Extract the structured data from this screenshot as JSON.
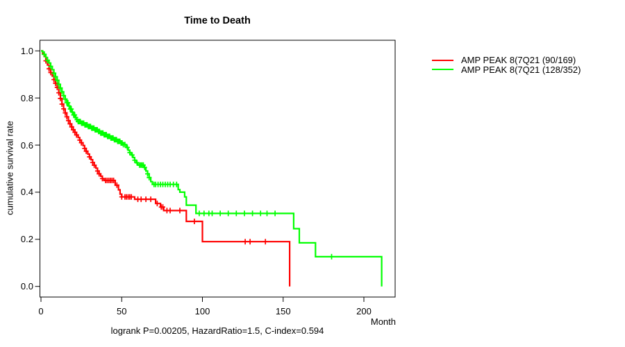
{
  "chart_data": {
    "type": "line",
    "subtype": "kaplan-meier-step",
    "title": "Time to Death",
    "xlabel": "Month",
    "ylabel": "cumulative survival rate",
    "footnote": "logrank P=0.00205, HazardRatio=1.5, C-index=0.594",
    "xlim": [
      0,
      220
    ],
    "ylim": [
      0.0,
      1.0
    ],
    "xticks": [
      0,
      50,
      100,
      150,
      200
    ],
    "yticks": [
      0.0,
      0.2,
      0.4,
      0.6,
      0.8,
      1.0
    ],
    "grid": false,
    "legend_position": "right-outside",
    "axis_color": "#000000",
    "series": [
      {
        "name": "AMP PEAK  8(7Q21 (90/169)",
        "color": "#ff0000",
        "steps": [
          [
            0,
            1.0
          ],
          [
            1,
            0.99
          ],
          [
            2,
            0.976
          ],
          [
            3,
            0.958
          ],
          [
            4,
            0.94
          ],
          [
            5,
            0.924
          ],
          [
            6,
            0.908
          ],
          [
            7,
            0.893
          ],
          [
            8,
            0.878
          ],
          [
            9,
            0.862
          ],
          [
            10,
            0.845
          ],
          [
            11,
            0.822
          ],
          [
            12,
            0.798
          ],
          [
            13,
            0.774
          ],
          [
            14,
            0.754
          ],
          [
            15,
            0.737
          ],
          [
            16,
            0.72
          ],
          [
            17,
            0.704
          ],
          [
            18,
            0.69
          ],
          [
            19,
            0.677
          ],
          [
            20,
            0.665
          ],
          [
            21,
            0.654
          ],
          [
            22,
            0.643
          ],
          [
            23,
            0.632
          ],
          [
            24,
            0.621
          ],
          [
            25,
            0.61
          ],
          [
            26,
            0.598
          ],
          [
            27,
            0.586
          ],
          [
            28,
            0.574
          ],
          [
            29,
            0.562
          ],
          [
            30,
            0.55
          ],
          [
            31,
            0.538
          ],
          [
            32,
            0.526
          ],
          [
            33,
            0.514
          ],
          [
            34,
            0.502
          ],
          [
            35,
            0.49
          ],
          [
            36,
            0.478
          ],
          [
            37,
            0.468
          ],
          [
            38,
            0.458
          ],
          [
            39,
            0.45
          ],
          [
            46,
            0.43
          ],
          [
            48,
            0.41
          ],
          [
            49,
            0.392
          ],
          [
            50,
            0.38
          ],
          [
            58,
            0.37
          ],
          [
            71,
            0.352
          ],
          [
            74,
            0.337
          ],
          [
            76,
            0.322
          ],
          [
            90,
            0.276
          ],
          [
            100,
            0.19
          ],
          [
            154,
            0.0
          ]
        ],
        "censor_months": [
          3,
          5,
          6,
          8,
          9,
          10,
          11,
          12,
          13,
          14,
          15,
          16,
          17,
          18,
          19,
          20,
          21,
          22,
          24,
          25,
          27,
          28,
          30,
          32,
          33,
          35,
          36,
          38,
          40,
          41,
          42,
          43,
          44,
          45,
          47,
          50,
          52,
          53,
          54,
          55,
          56,
          60,
          62,
          65,
          68,
          72,
          74.5,
          75.5,
          78,
          80,
          86,
          95,
          126.5,
          129.5,
          139
        ]
      },
      {
        "name": "AMP PEAK  8(7Q21 (128/352)",
        "color": "#00ff00",
        "steps": [
          [
            0,
            1.0
          ],
          [
            1,
            0.995
          ],
          [
            2,
            0.985
          ],
          [
            3,
            0.972
          ],
          [
            4,
            0.96
          ],
          [
            5,
            0.948
          ],
          [
            6,
            0.934
          ],
          [
            7,
            0.92
          ],
          [
            8,
            0.905
          ],
          [
            9,
            0.89
          ],
          [
            10,
            0.875
          ],
          [
            11,
            0.858
          ],
          [
            12,
            0.842
          ],
          [
            13,
            0.826
          ],
          [
            14,
            0.81
          ],
          [
            15,
            0.795
          ],
          [
            16,
            0.78
          ],
          [
            17,
            0.766
          ],
          [
            18,
            0.753
          ],
          [
            19,
            0.74
          ],
          [
            20,
            0.728
          ],
          [
            21,
            0.717
          ],
          [
            22,
            0.708
          ],
          [
            23,
            0.7
          ],
          [
            25,
            0.693
          ],
          [
            27,
            0.686
          ],
          [
            29,
            0.679
          ],
          [
            31,
            0.672
          ],
          [
            33,
            0.665
          ],
          [
            35,
            0.658
          ],
          [
            37,
            0.651
          ],
          [
            39,
            0.644
          ],
          [
            41,
            0.637
          ],
          [
            43,
            0.63
          ],
          [
            45,
            0.623
          ],
          [
            47,
            0.616
          ],
          [
            49,
            0.609
          ],
          [
            51,
            0.602
          ],
          [
            53,
            0.59
          ],
          [
            54,
            0.578
          ],
          [
            55,
            0.568
          ],
          [
            56,
            0.558
          ],
          [
            57,
            0.547
          ],
          [
            58,
            0.536
          ],
          [
            59,
            0.525
          ],
          [
            60,
            0.515
          ],
          [
            64,
            0.505
          ],
          [
            65,
            0.49
          ],
          [
            66,
            0.478
          ],
          [
            67,
            0.462
          ],
          [
            68,
            0.445
          ],
          [
            69,
            0.433
          ],
          [
            85,
            0.411
          ],
          [
            86,
            0.4
          ],
          [
            89,
            0.38
          ],
          [
            90,
            0.345
          ],
          [
            96,
            0.31
          ],
          [
            156.5,
            0.245
          ],
          [
            160,
            0.185
          ],
          [
            170,
            0.126
          ],
          [
            211,
            0.0
          ]
        ],
        "censor_months": [
          2,
          4,
          6,
          8,
          9,
          10,
          11,
          12,
          13,
          14,
          15,
          16,
          16.7,
          17.4,
          18.1,
          18.8,
          19.5,
          20.2,
          20.9,
          21.6,
          22.3,
          23,
          23.7,
          24.4,
          25.1,
          25.8,
          26.5,
          27.2,
          27.9,
          28.6,
          29.3,
          30,
          30.7,
          31.4,
          32.1,
          32.8,
          33.5,
          34.2,
          34.9,
          35.6,
          36.3,
          37,
          37.7,
          38.4,
          39.1,
          39.8,
          40.5,
          41.2,
          41.9,
          42.6,
          43.3,
          44,
          44.7,
          45.4,
          46.1,
          46.8,
          47.5,
          48.2,
          48.9,
          49.6,
          50.3,
          51,
          52,
          53.5,
          55,
          56.5,
          58,
          59.5,
          61,
          61.8,
          62.6,
          63.4,
          64.2,
          66,
          67,
          70,
          71,
          72.5,
          74,
          75.5,
          77,
          78.5,
          80,
          82,
          84,
          98,
          101,
          104,
          106,
          111,
          116,
          121,
          126,
          131,
          136,
          140,
          145,
          180
        ]
      }
    ]
  }
}
